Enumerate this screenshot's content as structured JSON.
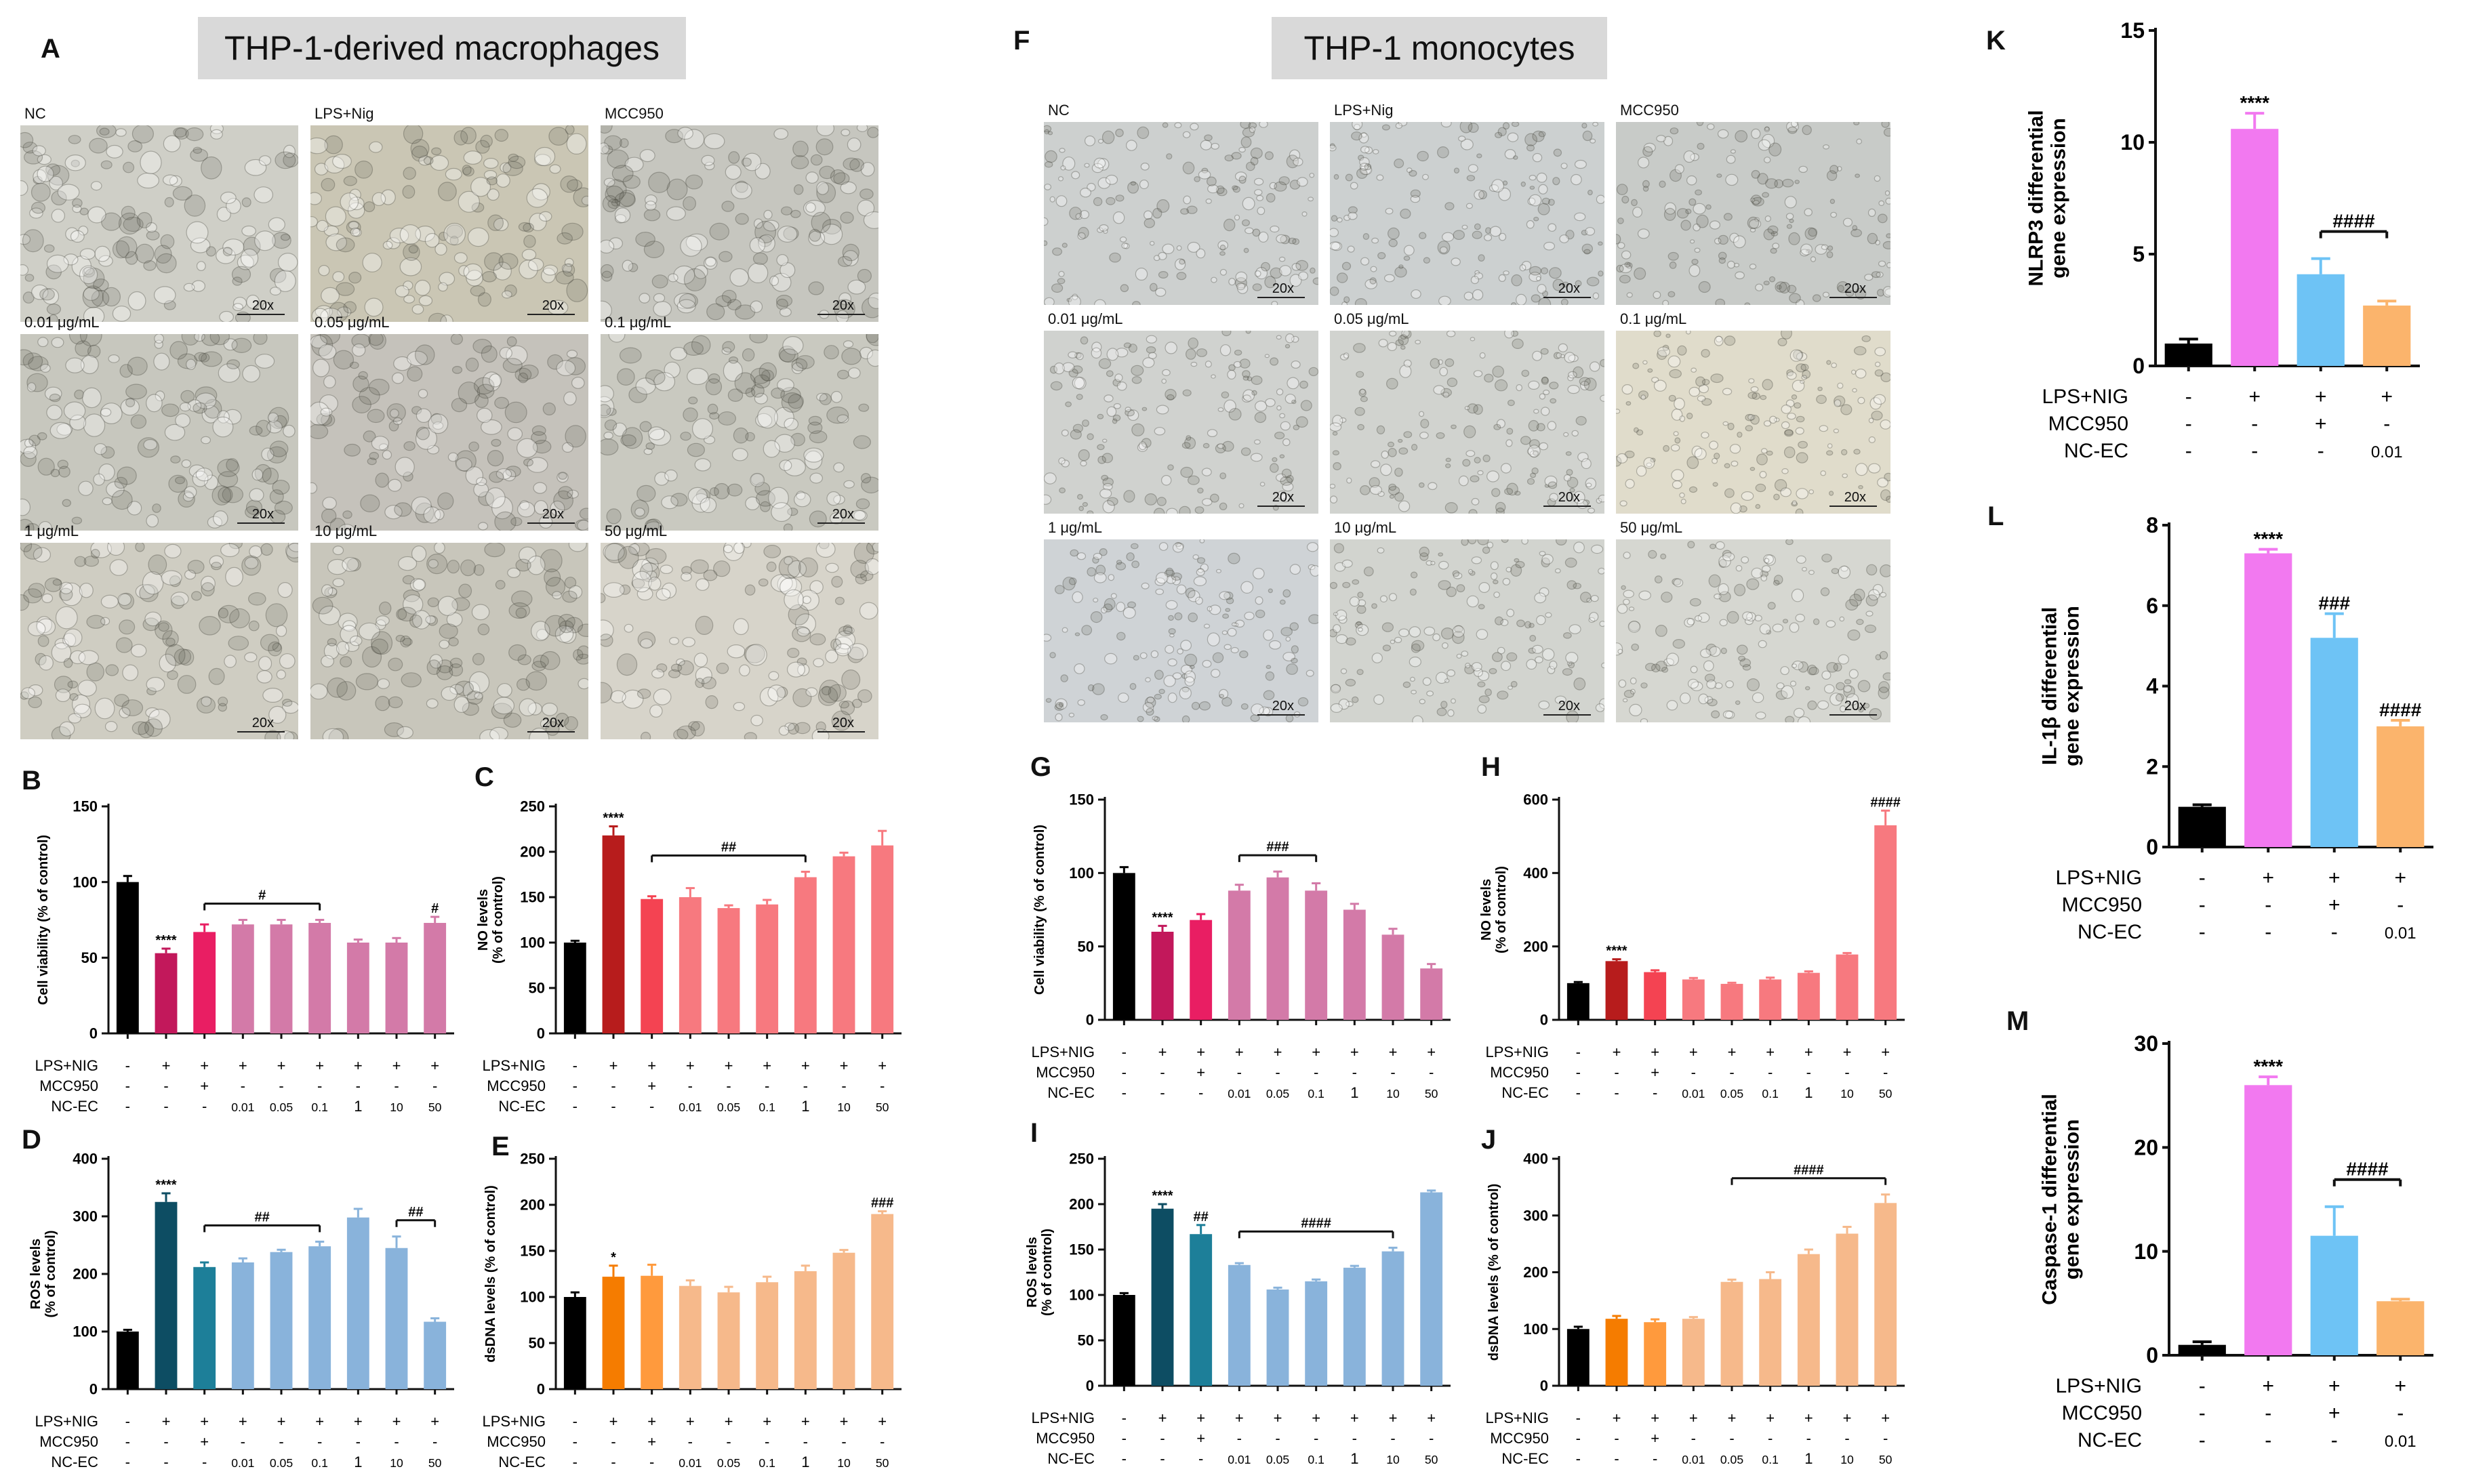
{
  "banners": {
    "left": "THP-1-derived macrophages",
    "right": "THP-1 monocytes"
  },
  "panel_letters": {
    "A": "A",
    "B": "B",
    "C": "C",
    "D": "D",
    "E": "E",
    "F": "F",
    "G": "G",
    "H": "H",
    "I": "I",
    "J": "J",
    "K": "K",
    "L": "L",
    "M": "M"
  },
  "micrographs": {
    "magnification": "20x",
    "labels": [
      "NC",
      "LPS+Nig",
      "MCC950",
      "0.01 μg/mL",
      "0.05 μg/mL",
      "0.1 μg/mL",
      "1 μg/mL",
      "10 μg/mL",
      "50 μg/mL"
    ],
    "tints": {
      "macro": [
        "#cfcfc7",
        "#cac6b4",
        "#c6c6bf",
        "#c7c7be",
        "#c5c2bb",
        "#c9c9c0",
        "#cfcdc2",
        "#c8c6bb",
        "#d7d4ca"
      ],
      "mono": [
        "#cdd0cf",
        "#ccd0d0",
        "#c8cbc8",
        "#d0d2cf",
        "#d1d3cf",
        "#e0dccb",
        "#cfd3d6",
        "#d2d4cf",
        "#d6d7d1"
      ]
    }
  },
  "chart_data": [
    {
      "id": "B",
      "type": "bar",
      "ylabel": "Cell viability (% of control)",
      "ylim": [
        0,
        150
      ],
      "yticks": [
        0,
        50,
        100,
        150
      ],
      "values": [
        100,
        53,
        67,
        72,
        72,
        73,
        60,
        60,
        73
      ],
      "errors": [
        4,
        3,
        5,
        3,
        3,
        2,
        2,
        3,
        4
      ],
      "colors": [
        "#000000",
        "#c2185b",
        "#e91e63",
        "#d37aa8",
        "#d37aa8",
        "#d37aa8",
        "#d37aa8",
        "#d37aa8",
        "#d37aa8"
      ],
      "bar_annotations": [
        "",
        "****",
        "",
        "",
        "",
        "",
        "",
        "",
        "#"
      ],
      "brackets": [
        {
          "from": 2,
          "to": 5,
          "label": "#"
        }
      ],
      "rows": [
        {
          "label": "LPS+NIG",
          "cells": [
            "-",
            "+",
            "+",
            "+",
            "+",
            "+",
            "+",
            "+",
            "+"
          ]
        },
        {
          "label": "MCC950",
          "cells": [
            "-",
            "-",
            "+",
            "-",
            "-",
            "-",
            "-",
            "-",
            "-"
          ]
        },
        {
          "label": "NC-EC",
          "cells": [
            "-",
            "-",
            "-",
            "0.01",
            "0.05",
            "0.1",
            "1",
            "10",
            "50"
          ]
        }
      ]
    },
    {
      "id": "C",
      "type": "bar",
      "ylabel": "NO levels (% of control)",
      "ylim": [
        0,
        250
      ],
      "yticks": [
        0,
        50,
        100,
        150,
        200,
        250
      ],
      "values": [
        100,
        218,
        148,
        150,
        138,
        142,
        172,
        195,
        207
      ],
      "errors": [
        2,
        10,
        3,
        10,
        3,
        5,
        6,
        4,
        16
      ],
      "colors": [
        "#000000",
        "#b71c1c",
        "#f44352",
        "#f7797f",
        "#f7797f",
        "#f7797f",
        "#f7797f",
        "#f7797f",
        "#f7797f"
      ],
      "bar_annotations": [
        "",
        "****",
        "",
        "",
        "",
        "",
        "",
        "",
        ""
      ],
      "brackets": [
        {
          "from": 2,
          "to": 6,
          "label": "##"
        }
      ],
      "rows": [
        {
          "label": "LPS+NIG",
          "cells": [
            "-",
            "+",
            "+",
            "+",
            "+",
            "+",
            "+",
            "+",
            "+"
          ]
        },
        {
          "label": "MCC950",
          "cells": [
            "-",
            "-",
            "+",
            "-",
            "-",
            "-",
            "-",
            "-",
            "-"
          ]
        },
        {
          "label": "NC-EC",
          "cells": [
            "-",
            "-",
            "-",
            "0.01",
            "0.05",
            "0.1",
            "1",
            "10",
            "50"
          ]
        }
      ]
    },
    {
      "id": "D",
      "type": "bar",
      "ylabel": "ROS levels (% of control)",
      "ylim": [
        0,
        400
      ],
      "yticks": [
        0,
        100,
        200,
        300,
        400
      ],
      "values": [
        100,
        325,
        212,
        220,
        238,
        248,
        298,
        245,
        117
      ],
      "errors": [
        3,
        15,
        8,
        7,
        4,
        8,
        15,
        20,
        6
      ],
      "colors": [
        "#000000",
        "#0d4d63",
        "#1d7f99",
        "#89b3db",
        "#89b3db",
        "#89b3db",
        "#89b3db",
        "#89b3db",
        "#89b3db"
      ],
      "bar_annotations": [
        "",
        "****",
        "",
        "",
        "",
        "",
        "",
        "",
        ""
      ],
      "brackets": [
        {
          "from": 2,
          "to": 5,
          "label": "##"
        },
        {
          "from": 7,
          "to": 8,
          "label": "##"
        }
      ],
      "rows": [
        {
          "label": "LPS+NIG",
          "cells": [
            "-",
            "+",
            "+",
            "+",
            "+",
            "+",
            "+",
            "+",
            "+"
          ]
        },
        {
          "label": "MCC950",
          "cells": [
            "-",
            "-",
            "+",
            "-",
            "-",
            "-",
            "-",
            "-",
            "-"
          ]
        },
        {
          "label": "NC-EC",
          "cells": [
            "-",
            "-",
            "-",
            "0.01",
            "0.05",
            "0.1",
            "1",
            "10",
            "50"
          ]
        }
      ]
    },
    {
      "id": "E",
      "type": "bar",
      "ylabel": "dsDNA levels (% of control)",
      "ylim": [
        0,
        250
      ],
      "yticks": [
        0,
        50,
        100,
        150,
        200,
        250
      ],
      "values": [
        100,
        122,
        123,
        112,
        105,
        116,
        128,
        148,
        190
      ],
      "errors": [
        5,
        12,
        12,
        6,
        6,
        6,
        6,
        3,
        3
      ],
      "colors": [
        "#000000",
        "#f57c00",
        "#ff9a3d",
        "#f6b98b",
        "#f6b98b",
        "#f6b98b",
        "#f6b98b",
        "#f6b98b",
        "#f6b98b"
      ],
      "bar_annotations": [
        "",
        "*",
        "",
        "",
        "",
        "",
        "",
        "",
        "###"
      ],
      "brackets": [],
      "rows": [
        {
          "label": "LPS+NIG",
          "cells": [
            "-",
            "+",
            "+",
            "+",
            "+",
            "+",
            "+",
            "+",
            "+"
          ]
        },
        {
          "label": "MCC950",
          "cells": [
            "-",
            "-",
            "+",
            "-",
            "-",
            "-",
            "-",
            "-",
            "-"
          ]
        },
        {
          "label": "NC-EC",
          "cells": [
            "-",
            "-",
            "-",
            "0.01",
            "0.05",
            "0.1",
            "1",
            "10",
            "50"
          ]
        }
      ]
    },
    {
      "id": "G",
      "type": "bar",
      "ylabel": "Cell viability (% of control)",
      "ylim": [
        0,
        150
      ],
      "yticks": [
        0,
        50,
        100,
        150
      ],
      "values": [
        100,
        60,
        68,
        88,
        97,
        88,
        75,
        58,
        35
      ],
      "errors": [
        4,
        4,
        4,
        4,
        4,
        5,
        4,
        4,
        3
      ],
      "colors": [
        "#000000",
        "#c2185b",
        "#e91e63",
        "#d37aa8",
        "#d37aa8",
        "#d37aa8",
        "#d37aa8",
        "#d37aa8",
        "#d37aa8"
      ],
      "bar_annotations": [
        "",
        "****",
        "",
        "",
        "",
        "",
        "",
        "",
        ""
      ],
      "brackets": [
        {
          "from": 3,
          "to": 5,
          "label": "###"
        }
      ],
      "rows": [
        {
          "label": "LPS+NIG",
          "cells": [
            "-",
            "+",
            "+",
            "+",
            "+",
            "+",
            "+",
            "+",
            "+"
          ]
        },
        {
          "label": "MCC950",
          "cells": [
            "-",
            "-",
            "+",
            "-",
            "-",
            "-",
            "-",
            "-",
            "-"
          ]
        },
        {
          "label": "NC-EC",
          "cells": [
            "-",
            "-",
            "-",
            "0.01",
            "0.05",
            "0.1",
            "1",
            "10",
            "50"
          ]
        }
      ]
    },
    {
      "id": "H",
      "type": "bar",
      "ylabel": "NO levels (% of control)",
      "ylim": [
        0,
        600
      ],
      "yticks": [
        0,
        200,
        400,
        600
      ],
      "values": [
        100,
        160,
        130,
        110,
        98,
        110,
        128,
        178,
        530
      ],
      "errors": [
        3,
        5,
        5,
        4,
        3,
        5,
        4,
        4,
        40
      ],
      "colors": [
        "#000000",
        "#b71c1c",
        "#f44352",
        "#f7797f",
        "#f7797f",
        "#f7797f",
        "#f7797f",
        "#f7797f",
        "#f7797f"
      ],
      "bar_annotations": [
        "",
        "****",
        "",
        "",
        "",
        "",
        "",
        "",
        "####"
      ],
      "brackets": [],
      "rows": [
        {
          "label": "LPS+NIG",
          "cells": [
            "-",
            "+",
            "+",
            "+",
            "+",
            "+",
            "+",
            "+",
            "+"
          ]
        },
        {
          "label": "MCC950",
          "cells": [
            "-",
            "-",
            "+",
            "-",
            "-",
            "-",
            "-",
            "-",
            "-"
          ]
        },
        {
          "label": "NC-EC",
          "cells": [
            "-",
            "-",
            "-",
            "0.01",
            "0.05",
            "0.1",
            "1",
            "10",
            "50"
          ]
        }
      ]
    },
    {
      "id": "I",
      "type": "bar",
      "ylabel": "ROS levels (% of control)",
      "ylim": [
        0,
        250
      ],
      "yticks": [
        0,
        50,
        100,
        150,
        200,
        250
      ],
      "values": [
        100,
        195,
        167,
        133,
        106,
        115,
        130,
        148,
        213
      ],
      "errors": [
        2,
        5,
        10,
        2,
        2,
        2,
        2,
        4,
        2
      ],
      "colors": [
        "#000000",
        "#0d4d63",
        "#1d7f99",
        "#89b3db",
        "#89b3db",
        "#89b3db",
        "#89b3db",
        "#89b3db",
        "#89b3db"
      ],
      "bar_annotations": [
        "",
        "****",
        "##",
        "",
        "",
        "",
        "",
        "",
        ""
      ],
      "brackets": [
        {
          "from": 3,
          "to": 7,
          "label": "####"
        }
      ],
      "rows": [
        {
          "label": "LPS+NIG",
          "cells": [
            "-",
            "+",
            "+",
            "+",
            "+",
            "+",
            "+",
            "+",
            "+"
          ]
        },
        {
          "label": "MCC950",
          "cells": [
            "-",
            "-",
            "+",
            "-",
            "-",
            "-",
            "-",
            "-",
            "-"
          ]
        },
        {
          "label": "NC-EC",
          "cells": [
            "-",
            "-",
            "-",
            "0.01",
            "0.05",
            "0.1",
            "1",
            "10",
            "50"
          ]
        }
      ]
    },
    {
      "id": "J",
      "type": "bar",
      "ylabel": "dsDNA levels (% of control)",
      "ylim": [
        0,
        400
      ],
      "yticks": [
        0,
        100,
        200,
        300,
        400
      ],
      "values": [
        100,
        118,
        112,
        118,
        183,
        188,
        232,
        268,
        322
      ],
      "errors": [
        4,
        5,
        5,
        3,
        4,
        12,
        8,
        12,
        15
      ],
      "colors": [
        "#000000",
        "#f57c00",
        "#ff9a3d",
        "#f6b98b",
        "#f6b98b",
        "#f6b98b",
        "#f6b98b",
        "#f6b98b",
        "#f6b98b"
      ],
      "bar_annotations": [
        "",
        "",
        "",
        "",
        "",
        "",
        "",
        "",
        ""
      ],
      "brackets": [
        {
          "from": 4,
          "to": 8,
          "label": "####"
        }
      ],
      "rows": [
        {
          "label": "LPS+NIG",
          "cells": [
            "-",
            "+",
            "+",
            "+",
            "+",
            "+",
            "+",
            "+",
            "+"
          ]
        },
        {
          "label": "MCC950",
          "cells": [
            "-",
            "-",
            "+",
            "-",
            "-",
            "-",
            "-",
            "-",
            "-"
          ]
        },
        {
          "label": "NC-EC",
          "cells": [
            "-",
            "-",
            "-",
            "0.01",
            "0.05",
            "0.1",
            "1",
            "10",
            "50"
          ]
        }
      ]
    },
    {
      "id": "K",
      "type": "bar",
      "ylabel": "NLRP3 differential gene expression",
      "ylim": [
        0,
        15
      ],
      "yticks": [
        0,
        5,
        10,
        15
      ],
      "values": [
        1,
        10.6,
        4.1,
        2.7
      ],
      "errors": [
        0.2,
        0.7,
        0.7,
        0.2
      ],
      "colors": [
        "#000000",
        "#f279f0",
        "#6ec3f5",
        "#fbb46c"
      ],
      "bar_annotations": [
        "",
        "****",
        "",
        ""
      ],
      "brackets": [
        {
          "from": 2,
          "to": 3,
          "label": "####"
        }
      ],
      "rows": [
        {
          "label": "LPS+NIG",
          "cells": [
            "-",
            "+",
            "+",
            "+"
          ]
        },
        {
          "label": "MCC950",
          "cells": [
            "-",
            "-",
            "+",
            "-"
          ]
        },
        {
          "label": "NC-EC",
          "cells": [
            "-",
            "-",
            "-",
            "0.01"
          ]
        }
      ]
    },
    {
      "id": "L",
      "type": "bar",
      "ylabel": "IL-1β differential gene expression",
      "ylim": [
        0,
        8
      ],
      "yticks": [
        0,
        2,
        4,
        6,
        8
      ],
      "values": [
        1,
        7.3,
        5.2,
        3.0
      ],
      "errors": [
        0.05,
        0.1,
        0.6,
        0.15
      ],
      "colors": [
        "#000000",
        "#f279f0",
        "#6ec3f5",
        "#fbb46c"
      ],
      "bar_annotations": [
        "",
        "****",
        "###",
        "####"
      ],
      "brackets": [],
      "rows": [
        {
          "label": "LPS+NIG",
          "cells": [
            "-",
            "+",
            "+",
            "+"
          ]
        },
        {
          "label": "MCC950",
          "cells": [
            "-",
            "-",
            "+",
            "-"
          ]
        },
        {
          "label": "NC-EC",
          "cells": [
            "-",
            "-",
            "-",
            "0.01"
          ]
        }
      ]
    },
    {
      "id": "M",
      "type": "bar",
      "ylabel": "Caspase-1 differential gene expression",
      "ylim": [
        0,
        30
      ],
      "yticks": [
        0,
        10,
        20,
        30
      ],
      "values": [
        1,
        26,
        11.5,
        5.2
      ],
      "errors": [
        0.3,
        0.8,
        2.8,
        0.2
      ],
      "colors": [
        "#000000",
        "#f279f0",
        "#6ec3f5",
        "#fbb46c"
      ],
      "bar_annotations": [
        "",
        "****",
        "",
        ""
      ],
      "brackets": [
        {
          "from": 2,
          "to": 3,
          "label": "####"
        }
      ],
      "rows": [
        {
          "label": "LPS+NIG",
          "cells": [
            "-",
            "+",
            "+",
            "+"
          ]
        },
        {
          "label": "MCC950",
          "cells": [
            "-",
            "-",
            "+",
            "-"
          ]
        },
        {
          "label": "NC-EC",
          "cells": [
            "-",
            "-",
            "-",
            "0.01"
          ]
        }
      ]
    }
  ]
}
